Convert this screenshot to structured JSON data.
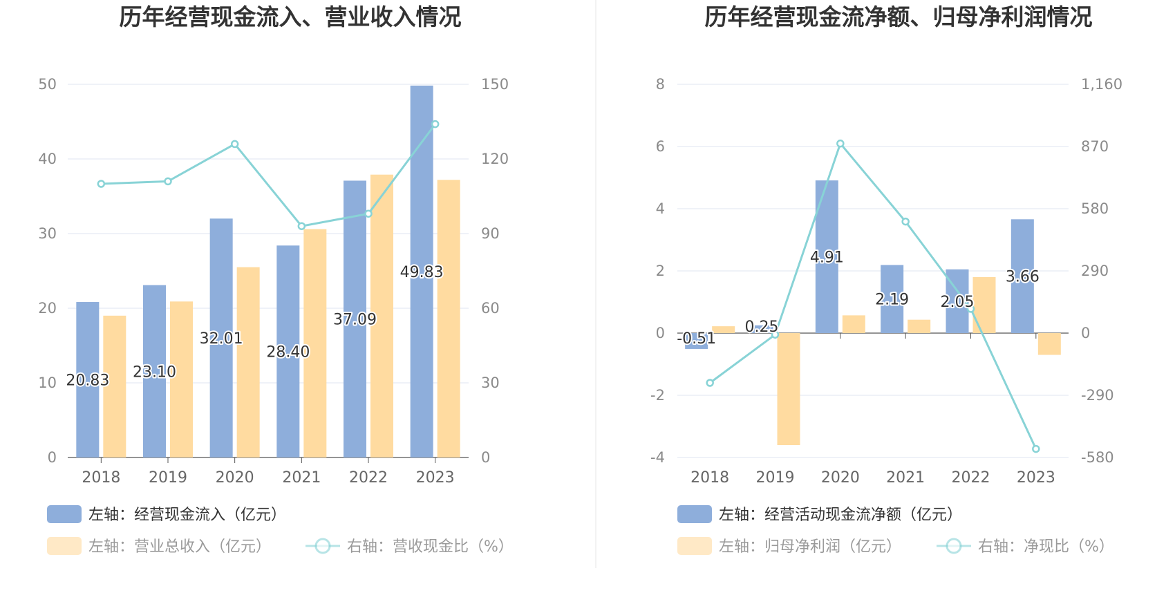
{
  "colors": {
    "bar_blue": "#8eaedb",
    "bar_orange": "#ffdba0",
    "line_teal": "#88d3d6",
    "grid": "#dfe4f2",
    "axis": "#555555"
  },
  "chart_data": [
    {
      "type": "bar",
      "title": "历年经营现金流入、营业收入情况",
      "categories": [
        "2018",
        "2019",
        "2020",
        "2021",
        "2022",
        "2023"
      ],
      "ylim_left": [
        0,
        50
      ],
      "left_ticks": [
        "0",
        "10",
        "20",
        "30",
        "40",
        "50"
      ],
      "ylim_right": [
        0,
        150
      ],
      "right_ticks": [
        "0",
        "30",
        "60",
        "90",
        "120",
        "150"
      ],
      "grid": true,
      "legend_position": "bottom",
      "series": [
        {
          "name": "左轴：经营现金流入（亿元）",
          "kind": "bar",
          "axis": "left",
          "color": "#8eaedb",
          "values": [
            20.83,
            23.1,
            32.01,
            28.4,
            37.09,
            49.83
          ],
          "labels": [
            "20.83",
            "23.10",
            "32.01",
            "28.40",
            "37.09",
            "49.83"
          ]
        },
        {
          "name": "左轴：营业总收入（亿元）",
          "kind": "bar",
          "axis": "left",
          "color": "#ffdba0",
          "values": [
            19.0,
            20.9,
            25.5,
            30.6,
            37.9,
            37.2
          ]
        },
        {
          "name": "右轴：营收现金比（%）",
          "kind": "line",
          "axis": "right",
          "color": "#88d3d6",
          "values": [
            110,
            111,
            126,
            93,
            98,
            134
          ]
        }
      ]
    },
    {
      "type": "bar",
      "title": "历年经营现金流净额、归母净利润情况",
      "categories": [
        "2018",
        "2019",
        "2020",
        "2021",
        "2022",
        "2023"
      ],
      "ylim_left": [
        -4,
        8
      ],
      "left_ticks": [
        "-4",
        "-2",
        "0",
        "2",
        "4",
        "6",
        "8"
      ],
      "ylim_right": [
        -580,
        1160
      ],
      "right_ticks": [
        "-580",
        "-290",
        "0",
        "290",
        "580",
        "870",
        "1,160"
      ],
      "grid": true,
      "legend_position": "bottom",
      "series": [
        {
          "name": "左轴：经营活动现金流净额（亿元）",
          "kind": "bar",
          "axis": "left",
          "color": "#8eaedb",
          "values": [
            -0.51,
            0.25,
            4.91,
            2.19,
            2.05,
            3.66
          ],
          "labels": [
            "-0.51",
            "0.25",
            "4.91",
            "2.19",
            "2.05",
            "3.66"
          ]
        },
        {
          "name": "左轴：归母净利润（亿元）",
          "kind": "bar",
          "axis": "left",
          "color": "#ffdba0",
          "values": [
            0.22,
            -3.6,
            0.57,
            0.43,
            1.8,
            -0.7
          ]
        },
        {
          "name": "右轴：净现比（%）",
          "kind": "line",
          "axis": "right",
          "color": "#88d3d6",
          "values": [
            -232,
            -7,
            884,
            520,
            113,
            -540
          ]
        }
      ]
    }
  ]
}
